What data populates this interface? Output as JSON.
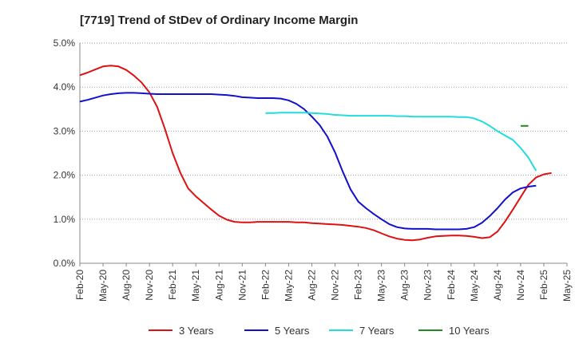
{
  "chart_data": {
    "type": "line",
    "title": "[7719]  Trend of StDev of Ordinary Income Margin",
    "xlabel": "",
    "ylabel": "",
    "ylim": [
      0,
      5
    ],
    "y_ticks": [
      "0.0%",
      "1.0%",
      "2.0%",
      "3.0%",
      "4.0%",
      "5.0%"
    ],
    "x_ticks": [
      "Feb-20",
      "May-20",
      "Aug-20",
      "Nov-20",
      "Feb-21",
      "May-21",
      "Aug-21",
      "Nov-21",
      "Feb-22",
      "May-22",
      "Aug-22",
      "Nov-22",
      "Feb-23",
      "May-23",
      "Aug-23",
      "Nov-23",
      "Feb-24",
      "May-24",
      "Aug-24",
      "Nov-24",
      "Feb-25",
      "May-25"
    ],
    "grid": "horizontal dotted",
    "legend_position": "bottom",
    "series": [
      {
        "name": "3 Years",
        "color": "#dd1111",
        "points": [
          [
            0,
            4.27
          ],
          [
            1,
            4.33
          ],
          [
            2,
            4.4
          ],
          [
            3,
            4.47
          ],
          [
            4,
            4.49
          ],
          [
            5,
            4.47
          ],
          [
            6,
            4.39
          ],
          [
            7,
            4.26
          ],
          [
            8,
            4.1
          ],
          [
            9,
            3.88
          ],
          [
            10,
            3.55
          ],
          [
            11,
            3.05
          ],
          [
            12,
            2.5
          ],
          [
            13,
            2.05
          ],
          [
            14,
            1.7
          ],
          [
            15,
            1.52
          ],
          [
            16,
            1.37
          ],
          [
            17,
            1.22
          ],
          [
            18,
            1.08
          ],
          [
            19,
            0.99
          ],
          [
            20,
            0.94
          ],
          [
            21,
            0.93
          ],
          [
            22,
            0.93
          ],
          [
            23,
            0.94
          ],
          [
            24,
            0.94
          ],
          [
            25,
            0.94
          ],
          [
            26,
            0.94
          ],
          [
            27,
            0.94
          ],
          [
            28,
            0.93
          ],
          [
            29,
            0.93
          ],
          [
            30,
            0.91
          ],
          [
            31,
            0.9
          ],
          [
            32,
            0.89
          ],
          [
            33,
            0.88
          ],
          [
            34,
            0.87
          ],
          [
            35,
            0.85
          ],
          [
            36,
            0.83
          ],
          [
            37,
            0.8
          ],
          [
            38,
            0.75
          ],
          [
            39,
            0.68
          ],
          [
            40,
            0.61
          ],
          [
            41,
            0.56
          ],
          [
            42,
            0.53
          ],
          [
            43,
            0.52
          ],
          [
            44,
            0.54
          ],
          [
            45,
            0.58
          ],
          [
            46,
            0.61
          ],
          [
            47,
            0.62
          ],
          [
            48,
            0.63
          ],
          [
            49,
            0.63
          ],
          [
            50,
            0.62
          ],
          [
            51,
            0.6
          ],
          [
            52,
            0.57
          ],
          [
            53,
            0.59
          ],
          [
            54,
            0.72
          ],
          [
            55,
            0.95
          ],
          [
            56,
            1.22
          ],
          [
            57,
            1.5
          ],
          [
            58,
            1.78
          ],
          [
            59,
            1.95
          ],
          [
            60,
            2.02
          ],
          [
            61,
            2.05
          ]
        ]
      },
      {
        "name": "5 Years",
        "color": "#1111cc",
        "points": [
          [
            0,
            3.67
          ],
          [
            1,
            3.71
          ],
          [
            2,
            3.76
          ],
          [
            3,
            3.81
          ],
          [
            4,
            3.84
          ],
          [
            5,
            3.86
          ],
          [
            6,
            3.87
          ],
          [
            7,
            3.87
          ],
          [
            8,
            3.86
          ],
          [
            9,
            3.85
          ],
          [
            10,
            3.84
          ],
          [
            11,
            3.84
          ],
          [
            12,
            3.84
          ],
          [
            13,
            3.84
          ],
          [
            14,
            3.84
          ],
          [
            15,
            3.84
          ],
          [
            16,
            3.84
          ],
          [
            17,
            3.84
          ],
          [
            18,
            3.83
          ],
          [
            19,
            3.82
          ],
          [
            20,
            3.8
          ],
          [
            21,
            3.77
          ],
          [
            22,
            3.76
          ],
          [
            23,
            3.75
          ],
          [
            24,
            3.75
          ],
          [
            25,
            3.75
          ],
          [
            26,
            3.74
          ],
          [
            27,
            3.7
          ],
          [
            28,
            3.62
          ],
          [
            29,
            3.5
          ],
          [
            30,
            3.33
          ],
          [
            31,
            3.14
          ],
          [
            32,
            2.88
          ],
          [
            33,
            2.52
          ],
          [
            34,
            2.08
          ],
          [
            35,
            1.68
          ],
          [
            36,
            1.4
          ],
          [
            37,
            1.25
          ],
          [
            38,
            1.12
          ],
          [
            39,
            1.0
          ],
          [
            40,
            0.89
          ],
          [
            41,
            0.82
          ],
          [
            42,
            0.79
          ],
          [
            43,
            0.78
          ],
          [
            44,
            0.78
          ],
          [
            45,
            0.78
          ],
          [
            46,
            0.77
          ],
          [
            47,
            0.77
          ],
          [
            48,
            0.77
          ],
          [
            49,
            0.77
          ],
          [
            50,
            0.78
          ],
          [
            51,
            0.82
          ],
          [
            52,
            0.92
          ],
          [
            53,
            1.07
          ],
          [
            54,
            1.25
          ],
          [
            55,
            1.45
          ],
          [
            56,
            1.61
          ],
          [
            57,
            1.7
          ],
          [
            58,
            1.74
          ],
          [
            59,
            1.76
          ]
        ]
      },
      {
        "name": "7 Years",
        "color": "#22dddd",
        "points": [
          [
            24,
            3.41
          ],
          [
            25,
            3.41
          ],
          [
            26,
            3.42
          ],
          [
            27,
            3.42
          ],
          [
            28,
            3.42
          ],
          [
            29,
            3.42
          ],
          [
            30,
            3.41
          ],
          [
            31,
            3.4
          ],
          [
            32,
            3.39
          ],
          [
            33,
            3.37
          ],
          [
            34,
            3.36
          ],
          [
            35,
            3.35
          ],
          [
            36,
            3.35
          ],
          [
            37,
            3.35
          ],
          [
            38,
            3.35
          ],
          [
            39,
            3.35
          ],
          [
            40,
            3.35
          ],
          [
            41,
            3.34
          ],
          [
            42,
            3.34
          ],
          [
            43,
            3.33
          ],
          [
            44,
            3.33
          ],
          [
            45,
            3.33
          ],
          [
            46,
            3.33
          ],
          [
            47,
            3.33
          ],
          [
            48,
            3.33
          ],
          [
            49,
            3.32
          ],
          [
            50,
            3.32
          ],
          [
            51,
            3.29
          ],
          [
            52,
            3.22
          ],
          [
            53,
            3.12
          ],
          [
            54,
            3.0
          ],
          [
            55,
            2.9
          ],
          [
            56,
            2.8
          ],
          [
            57,
            2.62
          ],
          [
            58,
            2.4
          ],
          [
            59,
            2.1
          ]
        ]
      },
      {
        "name": "10 Years",
        "color": "#228822",
        "points": [
          [
            57,
            3.12
          ],
          [
            58,
            3.12
          ]
        ]
      }
    ]
  }
}
